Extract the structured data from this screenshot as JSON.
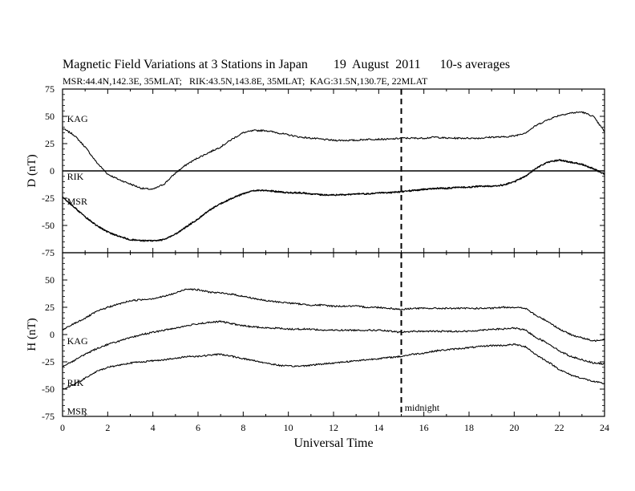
{
  "figure": {
    "title": "Magnetic Field Variations at 3 Stations in Japan        19  August  2011      10-s averages",
    "subtitle": "MSR:44.4N,142.3E, 35MLAT;   RIK:43.5N,143.8E, 35MLAT;  KAG:31.5N,130.7E, 22MLAT"
  },
  "chart_data": [
    {
      "type": "line",
      "title": "",
      "xlabel": "",
      "ylabel": "D (nT)",
      "xlim": [
        0,
        24
      ],
      "ylim": [
        -75,
        75
      ],
      "yticks": [
        -75,
        -50,
        -25,
        0,
        25,
        50,
        75
      ],
      "grid": false,
      "zero_line": true,
      "series": [
        {
          "name": "KAG",
          "x": [
            0,
            0.5,
            1,
            1.5,
            2,
            2.5,
            3,
            3.5,
            4,
            4.5,
            5,
            5.5,
            6,
            6.5,
            7,
            7.5,
            8,
            8.5,
            9,
            9.5,
            10,
            10.5,
            11,
            11.5,
            12,
            12.5,
            13,
            13.5,
            14,
            14.5,
            15,
            15.5,
            16,
            16.5,
            17,
            17.5,
            18,
            18.5,
            19,
            19.5,
            20,
            20.5,
            21,
            21.5,
            22,
            22.5,
            23,
            23.5,
            24
          ],
          "values": [
            39,
            33,
            22,
            8,
            -3,
            -8,
            -12,
            -16,
            -17,
            -12,
            -2,
            6,
            12,
            17,
            22,
            29,
            35,
            37,
            37,
            35,
            33,
            31,
            30,
            29,
            28,
            28,
            28,
            29,
            29,
            29,
            30,
            30,
            30,
            31,
            30,
            30,
            30,
            30,
            31,
            31,
            32,
            35,
            42,
            47,
            51,
            53,
            54,
            50,
            36
          ]
        },
        {
          "name": "RIK",
          "x": [
            0,
            0.5,
            1,
            1.5,
            2,
            2.5,
            3,
            3.5,
            4,
            4.5,
            5,
            5.5,
            6,
            6.5,
            7,
            7.5,
            8,
            8.5,
            9,
            9.5,
            10,
            10.5,
            11,
            11.5,
            12,
            12.5,
            13,
            13.5,
            14,
            14.5,
            15,
            15.5,
            16,
            16.5,
            17,
            17.5,
            18,
            18.5,
            19,
            19.5,
            20,
            20.5,
            21,
            21.5,
            22,
            22.5,
            23,
            23.5,
            24
          ],
          "values": [
            -24,
            -33,
            -42,
            -50,
            -56,
            -60,
            -63,
            -64,
            -64,
            -63,
            -58,
            -51,
            -44,
            -36,
            -30,
            -25,
            -21,
            -18,
            -18,
            -19,
            -20,
            -20,
            -21,
            -22,
            -22,
            -22,
            -21,
            -21,
            -20,
            -20,
            -19,
            -18,
            -17,
            -16,
            -16,
            -15,
            -15,
            -14,
            -14,
            -13,
            -10,
            -5,
            3,
            8,
            10,
            8,
            6,
            2,
            -3
          ]
        },
        {
          "name": "MSR",
          "x": [
            0,
            0.5,
            1,
            1.5,
            2,
            2.5,
            3,
            3.5,
            4,
            4.5,
            5,
            5.5,
            6,
            6.5,
            7,
            7.5,
            8,
            8.5,
            9,
            9.5,
            10,
            10.5,
            11,
            11.5,
            12,
            12.5,
            13,
            13.5,
            14,
            14.5,
            15,
            15.5,
            16,
            16.5,
            17,
            17.5,
            18,
            18.5,
            19,
            19.5,
            20,
            20.5,
            21,
            21.5,
            22,
            22.5,
            23,
            23.5,
            24
          ],
          "values": [
            -24,
            -33,
            -42,
            -50,
            -56,
            -60,
            -63,
            -64,
            -64,
            -63,
            -58,
            -51,
            -44,
            -36,
            -30,
            -25,
            -21,
            -18,
            -18,
            -19,
            -20,
            -20,
            -21,
            -22,
            -22,
            -22,
            -21,
            -21,
            -20,
            -20,
            -19,
            -18,
            -17,
            -16,
            -16,
            -15,
            -15,
            -14,
            -14,
            -13,
            -10,
            -5,
            3,
            8,
            10,
            8,
            6,
            2,
            -3
          ]
        }
      ],
      "labels": [
        {
          "text": "KAG",
          "x": 0.2,
          "y": 45
        },
        {
          "text": "RIK",
          "x": 0.2,
          "y": -8
        },
        {
          "text": "MSR",
          "x": 0.2,
          "y": -31
        }
      ],
      "annotations": [
        {
          "type": "vline",
          "x": 15,
          "style": "dashed"
        }
      ]
    },
    {
      "type": "line",
      "title": "",
      "xlabel": "Universal Time",
      "ylabel": "H (nT)",
      "xlim": [
        0,
        24
      ],
      "ylim": [
        -75,
        75
      ],
      "xticks": [
        0,
        2,
        4,
        6,
        8,
        10,
        12,
        14,
        16,
        18,
        20,
        22,
        24
      ],
      "yticks": [
        -75,
        -50,
        -25,
        0,
        25,
        50
      ],
      "grid": false,
      "series": [
        {
          "name": "KAG",
          "x": [
            0,
            0.5,
            1,
            1.5,
            2,
            2.5,
            3,
            3.5,
            4,
            4.5,
            5,
            5.5,
            6,
            6.5,
            7,
            7.5,
            8,
            8.5,
            9,
            9.5,
            10,
            10.5,
            11,
            11.5,
            12,
            12.5,
            13,
            13.5,
            14,
            14.5,
            15,
            15.5,
            16,
            16.5,
            17,
            17.5,
            18,
            18.5,
            19,
            19.5,
            20,
            20.5,
            21,
            21.5,
            22,
            22.5,
            23,
            23.5,
            24
          ],
          "values": [
            4,
            10,
            15,
            21,
            25,
            28,
            31,
            32,
            33,
            35,
            38,
            42,
            41,
            39,
            38,
            37,
            35,
            33,
            31,
            30,
            29,
            28,
            27,
            27,
            26,
            26,
            26,
            25,
            25,
            24,
            23,
            24,
            24,
            24,
            24,
            24,
            24,
            24,
            24,
            25,
            25,
            24,
            17,
            12,
            5,
            0,
            -3,
            -6,
            -4
          ]
        },
        {
          "name": "RIK",
          "x": [
            0,
            0.5,
            1,
            1.5,
            2,
            2.5,
            3,
            3.5,
            4,
            4.5,
            5,
            5.5,
            6,
            6.5,
            7,
            7.5,
            8,
            8.5,
            9,
            9.5,
            10,
            10.5,
            11,
            11.5,
            12,
            12.5,
            13,
            13.5,
            14,
            14.5,
            15,
            15.5,
            16,
            16.5,
            17,
            17.5,
            18,
            18.5,
            19,
            19.5,
            20,
            20.5,
            21,
            21.5,
            22,
            22.5,
            23,
            23.5,
            24
          ],
          "values": [
            -29,
            -24,
            -18,
            -13,
            -9,
            -6,
            -3,
            0,
            2,
            4,
            6,
            8,
            10,
            11,
            12,
            10,
            8,
            7,
            6,
            6,
            5,
            5,
            5,
            4,
            4,
            4,
            4,
            4,
            4,
            3,
            2,
            3,
            3,
            3,
            3,
            3,
            3,
            4,
            5,
            5,
            6,
            4,
            -3,
            -8,
            -15,
            -20,
            -23,
            -26,
            -27
          ]
        },
        {
          "name": "MSR",
          "x": [
            0,
            0.5,
            1,
            1.5,
            2,
            2.5,
            3,
            3.5,
            4,
            4.5,
            5,
            5.5,
            6,
            6.5,
            7,
            7.5,
            8,
            8.5,
            9,
            9.5,
            10,
            10.5,
            11,
            11.5,
            12,
            12.5,
            13,
            13.5,
            14,
            14.5,
            15,
            15.5,
            16,
            16.5,
            17,
            17.5,
            18,
            18.5,
            19,
            19.5,
            20,
            20.5,
            21,
            21.5,
            22,
            22.5,
            23,
            23.5,
            24
          ],
          "values": [
            -50,
            -46,
            -40,
            -34,
            -30,
            -28,
            -26,
            -25,
            -24,
            -23,
            -22,
            -20,
            -20,
            -19,
            -18,
            -20,
            -22,
            -24,
            -26,
            -28,
            -29,
            -29,
            -28,
            -27,
            -26,
            -25,
            -24,
            -23,
            -22,
            -21,
            -20,
            -18,
            -17,
            -15,
            -14,
            -13,
            -12,
            -11,
            -10,
            -10,
            -9,
            -11,
            -19,
            -25,
            -32,
            -37,
            -40,
            -43,
            -45
          ]
        }
      ],
      "labels": [
        {
          "text": "KAG",
          "x": 0.2,
          "y": -9
        },
        {
          "text": "RIK",
          "x": 0.2,
          "y": -47
        },
        {
          "text": "MSR",
          "x": 0.2,
          "y": -73
        },
        {
          "text": "midnight",
          "x": 15.15,
          "y": -70
        }
      ],
      "annotations": [
        {
          "type": "vline",
          "x": 15,
          "style": "dashed"
        }
      ]
    }
  ]
}
